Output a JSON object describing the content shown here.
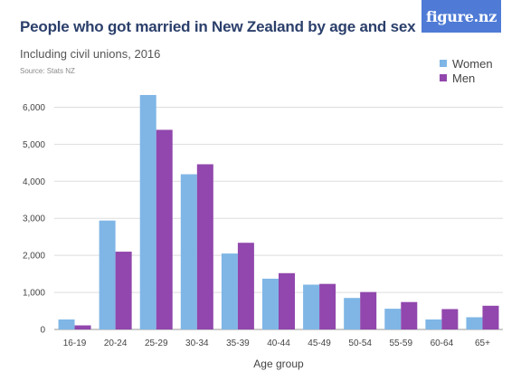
{
  "header": {
    "title": "People who got married in New Zealand by age and sex",
    "subtitle": "Including civil unions, 2016",
    "source": "Source: Stats NZ",
    "logo": "figure.nz"
  },
  "colors": {
    "women": "#7fb6e6",
    "men": "#9147ad",
    "grid": "#dddddd",
    "title": "#2b3f6b",
    "logo_bg": "#4f7bd6"
  },
  "chart_data": {
    "type": "bar",
    "title": "People who got married in New Zealand by age and sex",
    "subtitle": "Including civil unions, 2016",
    "xlabel": "Age group",
    "ylabel": "",
    "ylim": [
      0,
      6500
    ],
    "yticks": [
      0,
      1000,
      2000,
      3000,
      4000,
      5000,
      6000
    ],
    "ytick_labels": [
      "0",
      "1,000",
      "2,000",
      "3,000",
      "4,000",
      "5,000",
      "6,000"
    ],
    "categories": [
      "16-19",
      "20-24",
      "25-29",
      "30-34",
      "35-39",
      "40-44",
      "45-49",
      "50-54",
      "55-59",
      "60-64",
      "65+"
    ],
    "series": [
      {
        "name": "Women",
        "values": [
          270,
          2940,
          6330,
          4190,
          2050,
          1370,
          1210,
          850,
          560,
          270,
          330
        ]
      },
      {
        "name": "Men",
        "values": [
          110,
          2100,
          5390,
          4460,
          2340,
          1520,
          1230,
          1010,
          740,
          550,
          640
        ]
      }
    ],
    "legend_position": "top-right",
    "grid": true
  }
}
